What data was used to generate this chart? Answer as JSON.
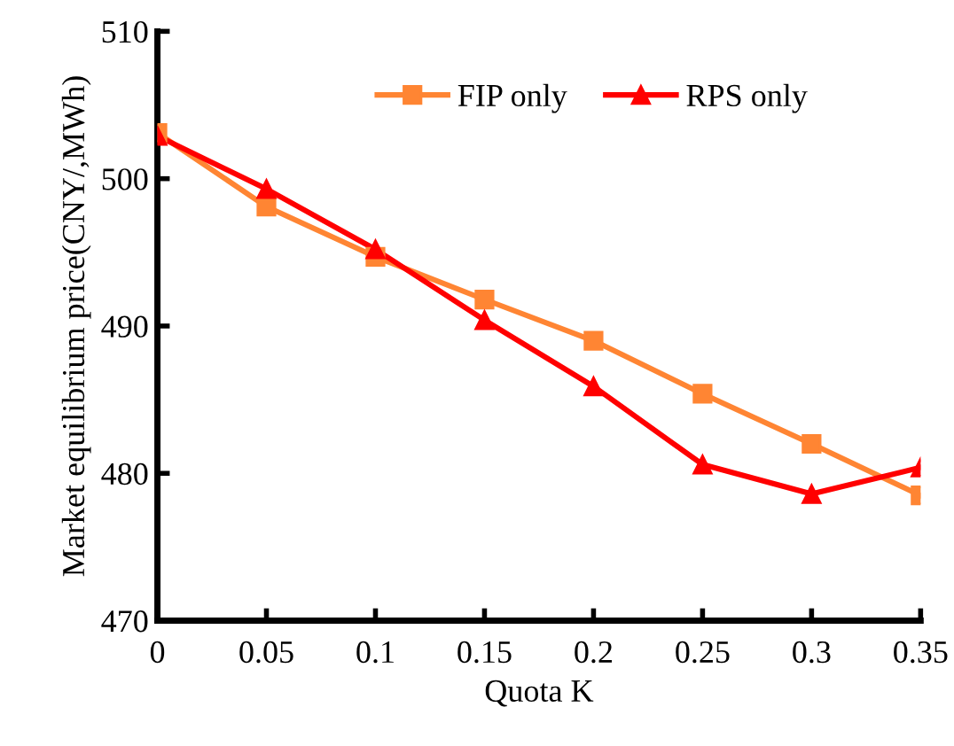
{
  "chart_data": {
    "type": "line",
    "xlabel": "Quota K",
    "ylabel": "Market equilibrium price(CNY/,MWh)",
    "x": [
      0,
      0.05,
      0.1,
      0.15,
      0.2,
      0.25,
      0.3,
      0.35
    ],
    "series": [
      {
        "name": "FIP only",
        "color": "#ff8533",
        "marker": "square",
        "values": [
          503.1,
          498.1,
          494.7,
          491.8,
          489.0,
          485.4,
          482.0,
          478.5
        ]
      },
      {
        "name": "RPS only",
        "color": "#ff0000",
        "marker": "triangle",
        "values": [
          502.9,
          499.3,
          495.2,
          490.4,
          485.9,
          480.6,
          478.6,
          480.4
        ]
      }
    ],
    "xlim": [
      0,
      0.35
    ],
    "xticks": [
      0,
      0.05,
      0.1,
      0.15,
      0.2,
      0.25,
      0.3,
      0.35
    ],
    "ylim": [
      470,
      510
    ],
    "yticks": [
      470,
      480,
      490,
      500,
      510
    ],
    "grid": false,
    "legend": "top",
    "line_style": "solid"
  }
}
